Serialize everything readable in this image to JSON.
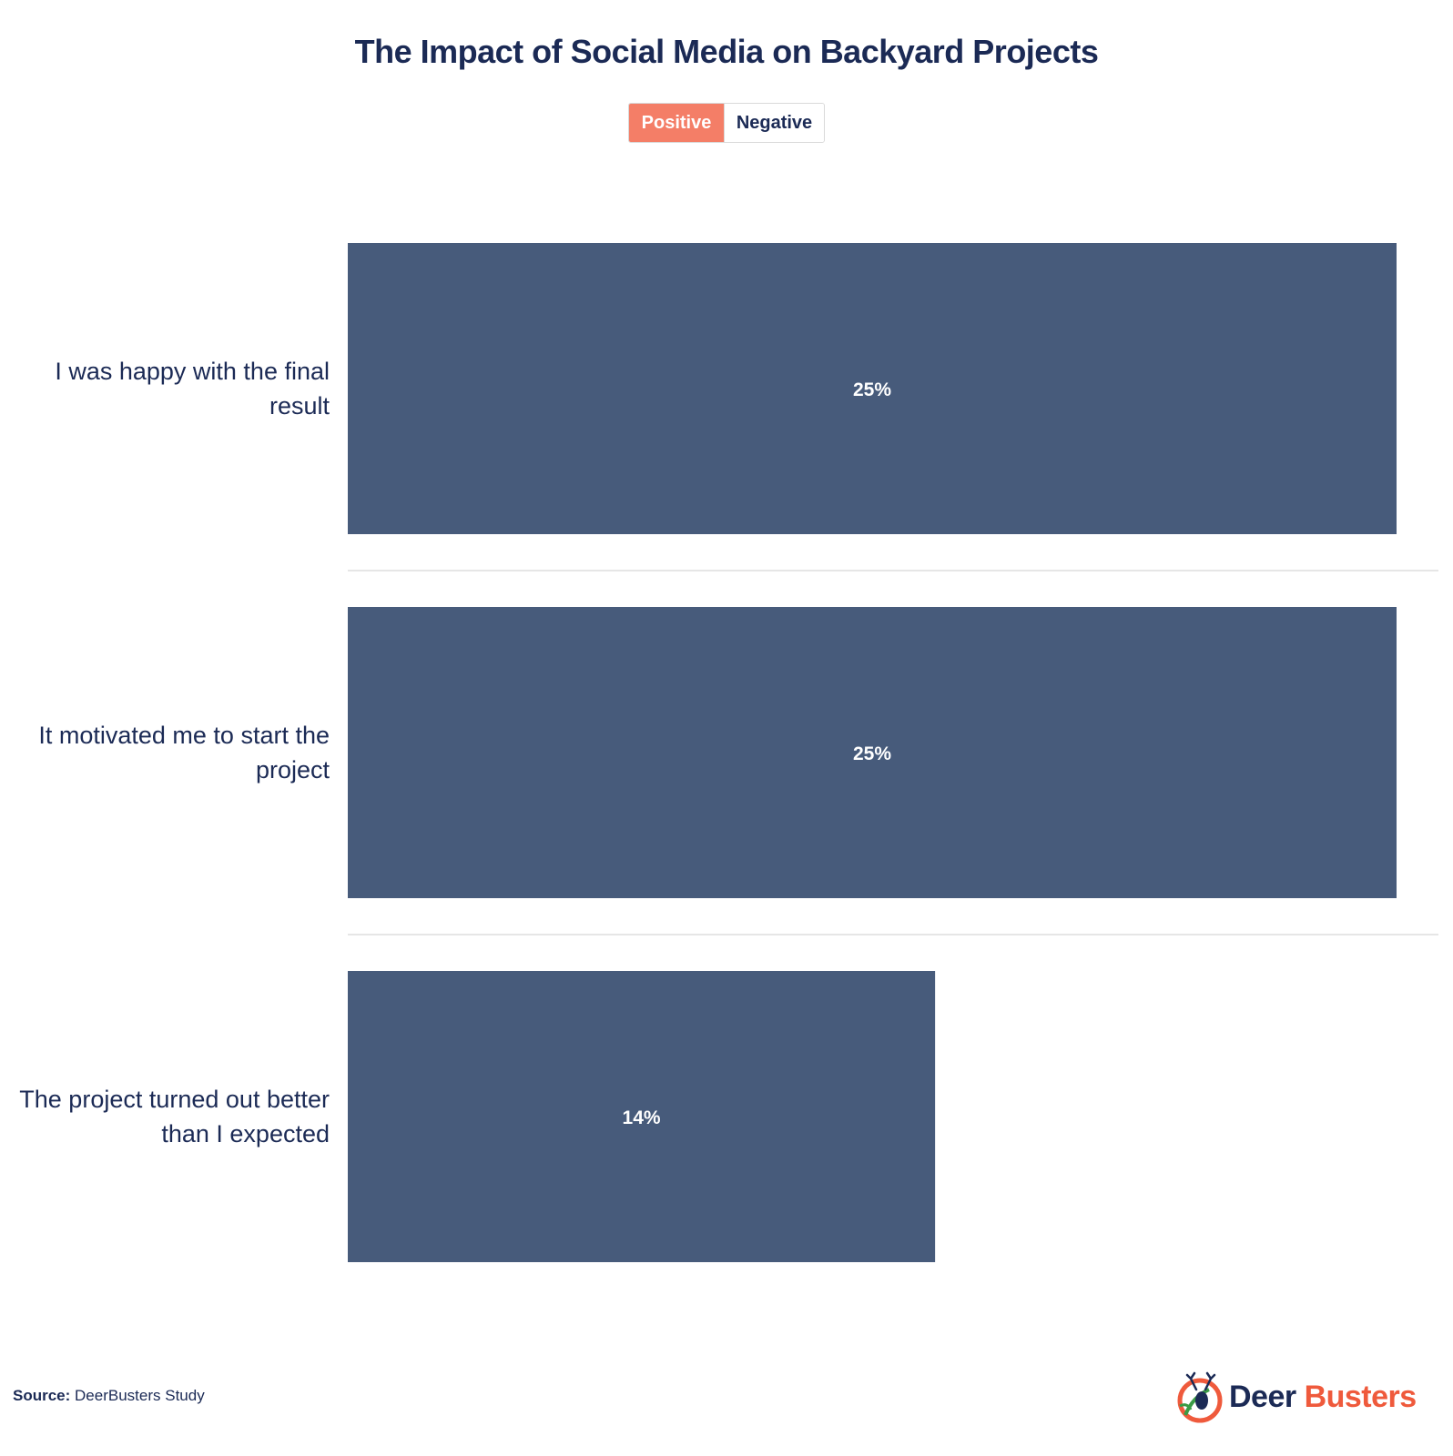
{
  "header": {
    "title": "The Impact of Social Media on Backyard Projects"
  },
  "toggle": {
    "positive_label": "Positive",
    "negative_label": "Negative",
    "selected": "Positive"
  },
  "colors": {
    "bar": "#475b7b",
    "active_toggle": "#f47e67",
    "text": "#1b2a55",
    "separator": "#e6e6e6"
  },
  "chart_data": {
    "type": "bar",
    "orientation": "horizontal",
    "title": "The Impact of Social Media on Backyard Projects",
    "categories": [
      "I was happy with the final result",
      "It motivated me to start the project",
      "The project turned out better than I expected"
    ],
    "category_lines": [
      [
        "I was happy with the final",
        "result"
      ],
      [
        "It motivated me to start the",
        "project"
      ],
      [
        "The project turned out better",
        "than I expected"
      ]
    ],
    "values": [
      25,
      25,
      14
    ],
    "value_labels": [
      "25%",
      "25%",
      "14%"
    ],
    "unit": "%",
    "xlim": [
      0,
      25
    ],
    "grid": false,
    "legend": "top-center"
  },
  "footer": {
    "source_label": "Source:",
    "source_text": "DeerBusters Study",
    "logo_word1": "Deer",
    "logo_word2": "Busters",
    "logo_icon": "deer-head-logo-icon"
  }
}
